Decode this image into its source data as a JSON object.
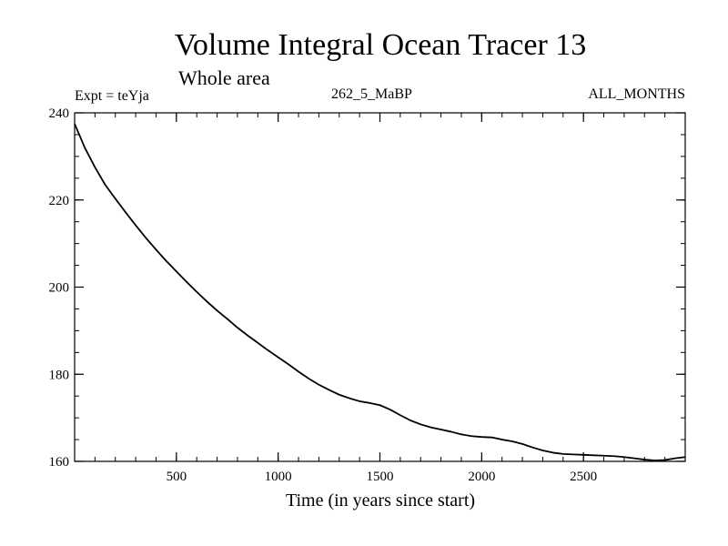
{
  "chart_data": {
    "type": "line",
    "title": "Volume Integral Ocean Tracer 13",
    "subtitle": "Whole area",
    "annotations": {
      "left": "Expt = teYja",
      "center": "262_5_MaBP",
      "right": "ALL_MONTHS"
    },
    "xlabel": "Time (in years since start)",
    "ylabel": "",
    "xlim": [
      0,
      3000
    ],
    "ylim": [
      160,
      240
    ],
    "x_ticks": [
      500,
      1000,
      1500,
      2000,
      2500
    ],
    "y_ticks": [
      160,
      180,
      200,
      220,
      240
    ],
    "x_minor_step": 100,
    "y_minor_step": 5,
    "grid": false,
    "legend": "none",
    "line_color": "#000000",
    "series": [
      {
        "x": [
          0,
          50,
          100,
          150,
          200,
          250,
          300,
          350,
          400,
          450,
          500,
          550,
          600,
          650,
          700,
          750,
          800,
          850,
          900,
          950,
          1000,
          1050,
          1100,
          1150,
          1200,
          1250,
          1300,
          1350,
          1400,
          1450,
          1500,
          1550,
          1600,
          1650,
          1700,
          1750,
          1800,
          1850,
          1900,
          1950,
          2000,
          2050,
          2100,
          2150,
          2200,
          2250,
          2300,
          2350,
          2400,
          2450,
          2500,
          2550,
          2600,
          2650,
          2700,
          2750,
          2800,
          2850,
          2900,
          2950,
          3000
        ],
        "y": [
          237.5,
          232,
          227.5,
          223.5,
          220.3,
          217.2,
          214.2,
          211.3,
          208.6,
          206.0,
          203.6,
          201.2,
          198.9,
          196.7,
          194.6,
          192.7,
          190.7,
          188.9,
          187.2,
          185.5,
          183.9,
          182.3,
          180.6,
          179.0,
          177.6,
          176.4,
          175.3,
          174.5,
          173.8,
          173.4,
          172.9,
          171.9,
          170.6,
          169.4,
          168.5,
          167.8,
          167.3,
          166.8,
          166.2,
          165.8,
          165.6,
          165.5,
          165.0,
          164.6,
          164.0,
          163.2,
          162.5,
          162.0,
          161.7,
          161.6,
          161.5,
          161.4,
          161.3,
          161.2,
          161.0,
          160.7,
          160.4,
          160.2,
          160.3,
          160.7,
          161.0
        ]
      }
    ]
  }
}
